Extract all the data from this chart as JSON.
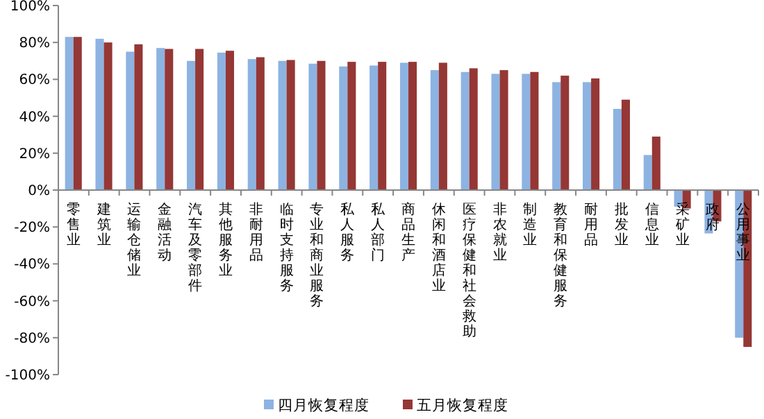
{
  "chart_data": {
    "type": "bar",
    "categories": [
      "零售业",
      "建筑业",
      "运输仓储业",
      "金融活动",
      "汽车及零部件",
      "其他服务业",
      "非耐用品",
      "临时支持服务",
      "专业和商业服务",
      "私人服务",
      "私人部门",
      "商品生产",
      "休闲和酒店业",
      "医疗保健和社会救助",
      "非农就业",
      "制造业",
      "教育和保健服务",
      "耐用品",
      "批发业",
      "信息业",
      "采矿业",
      "政府",
      "公用事业"
    ],
    "series": [
      {
        "name": "四月恢复程度",
        "color": "#8db3e2",
        "values": [
          83,
          82,
          75,
          77,
          70,
          74.5,
          71,
          70,
          68.5,
          67,
          67.5,
          69,
          65,
          64,
          63,
          63,
          58.5,
          58.5,
          44,
          19,
          -9,
          -23.5,
          -80
        ]
      },
      {
        "name": "五月恢复程度",
        "color": "#953735",
        "values": [
          83,
          80,
          79,
          76.5,
          76.5,
          75.5,
          72,
          70.5,
          70,
          69.5,
          69.5,
          69.5,
          69,
          66,
          65,
          64,
          62,
          60.5,
          49,
          29,
          -10,
          -17,
          -85
        ]
      }
    ],
    "ylim": [
      -100,
      100
    ],
    "yticks": [
      {
        "value": -100,
        "label": "-100%"
      },
      {
        "value": -80,
        "label": "-80%"
      },
      {
        "value": -60,
        "label": "-60%"
      },
      {
        "value": -40,
        "label": "-40%"
      },
      {
        "value": -20,
        "label": "-20%"
      },
      {
        "value": 0,
        "label": "0%"
      },
      {
        "value": 20,
        "label": "20%"
      },
      {
        "value": 40,
        "label": "40%"
      },
      {
        "value": 60,
        "label": "60%"
      },
      {
        "value": 80,
        "label": "80%"
      },
      {
        "value": 100,
        "label": "100%"
      }
    ],
    "grid": false,
    "legend": "bottom"
  }
}
